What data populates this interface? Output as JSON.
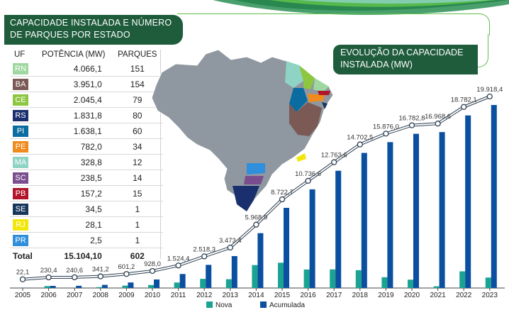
{
  "table": {
    "title": "CAPACIDADE INSTALADA E NÚMERO DE PARQUES POR ESTADO",
    "headers": {
      "uf": "UF",
      "power": "POTÊNCIA (MW)",
      "parks": "PARQUES"
    },
    "rows": [
      {
        "uf": "RN",
        "power": "4.066,1",
        "parks": "151",
        "color": "#9ed8a0",
        "textColor": "#ffffff"
      },
      {
        "uf": "BA",
        "power": "3.951,0",
        "parks": "154",
        "color": "#7b5a56",
        "textColor": "#ffffff"
      },
      {
        "uf": "CE",
        "power": "2.045,4",
        "parks": "79",
        "color": "#8dc63f",
        "textColor": "#ffffff"
      },
      {
        "uf": "RS",
        "power": "1.831,8",
        "parks": "80",
        "color": "#1a2f6d",
        "textColor": "#ffffff"
      },
      {
        "uf": "PI",
        "power": "1.638,1",
        "parks": "60",
        "color": "#0a6ca0",
        "textColor": "#ffffff"
      },
      {
        "uf": "PE",
        "power": "782,0",
        "parks": "34",
        "color": "#f08a1c",
        "textColor": "#ffffff"
      },
      {
        "uf": "MA",
        "power": "328,8",
        "parks": "12",
        "color": "#8fd3c4",
        "textColor": "#ffffff"
      },
      {
        "uf": "SC",
        "power": "238,5",
        "parks": "14",
        "color": "#7a4d8f",
        "textColor": "#ffffff"
      },
      {
        "uf": "PB",
        "power": "157,2",
        "parks": "15",
        "color": "#b1142b",
        "textColor": "#ffffff"
      },
      {
        "uf": "SE",
        "power": "34,5",
        "parks": "1",
        "color": "#16365c",
        "textColor": "#ffffff"
      },
      {
        "uf": "RJ",
        "power": "28,1",
        "parks": "1",
        "color": "#f3e60a",
        "textColor": "#ffffff"
      },
      {
        "uf": "PR",
        "power": "2,5",
        "parks": "1",
        "color": "#2f8fdc",
        "textColor": "#ffffff"
      }
    ],
    "total": {
      "label": "Total",
      "power": "15.104,10",
      "parks": "602"
    }
  },
  "chart_data": {
    "type": "bar",
    "title": "EVOLUÇÃO DA CAPACIDADE INSTALADA (MW)",
    "categories": [
      "2005",
      "2006",
      "2007",
      "2008",
      "2009",
      "2010",
      "2011",
      "2012",
      "2013",
      "2014",
      "2015",
      "2016",
      "2017",
      "2018",
      "2019",
      "2020",
      "2021",
      "2022",
      "2023"
    ],
    "cumulative_labels": [
      "22,1",
      "230,4",
      "240,6",
      "341,2",
      "601,2",
      "928,0",
      "1.524,4",
      "2.518,3",
      "3.473,4",
      "5.968,9",
      "8.722,7",
      "10.736,6",
      "12.763,6",
      "14.702,5",
      "15.876,0",
      "16.782,8",
      "16.968,6",
      "18.782,1",
      "19.918,4"
    ],
    "series": [
      {
        "name": "Nova",
        "color": "#1aa392",
        "values": [
          0,
          208.3,
          10.2,
          100.6,
          260,
          326.8,
          596.4,
          993.9,
          955.1,
          2495.5,
          2753.8,
          2013.9,
          2027,
          1938.9,
          1173.5,
          906.8,
          185.8,
          1813.5,
          1136.3
        ]
      },
      {
        "name": "Acumulada",
        "color": "#0a4fa0",
        "values": [
          22.1,
          230.4,
          240.6,
          341.2,
          601.2,
          928.0,
          1524.4,
          2518.3,
          3473.4,
          5968.9,
          8722.7,
          10736.6,
          12763.6,
          14702.5,
          15876.0,
          16782.8,
          16968.6,
          18782.1,
          19918.4
        ]
      }
    ],
    "legend": "bottom"
  },
  "colors": {
    "header_green": "#1f5c3c",
    "accent_green": "#5abf4a",
    "map_gray": "#8f98a0"
  }
}
